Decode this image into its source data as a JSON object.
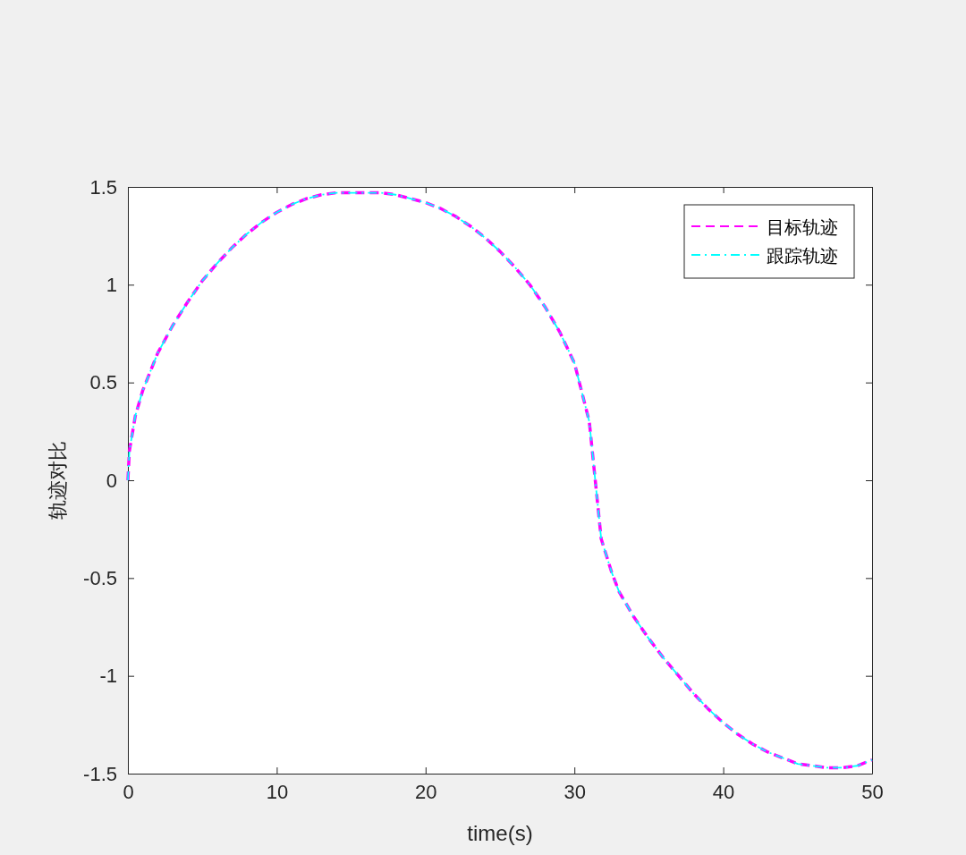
{
  "chart_data": {
    "type": "line",
    "xlabel": "time(s)",
    "ylabel": "轨迹对比",
    "x": [
      0,
      0.1,
      0.5,
      1,
      2,
      3,
      4,
      5,
      6,
      7,
      8,
      9,
      10,
      11,
      12,
      13,
      14,
      15.7,
      17,
      18,
      19,
      20,
      21,
      22,
      23,
      24,
      25,
      26,
      27,
      28,
      29,
      30,
      31,
      31.4,
      31.8,
      32.5,
      33,
      34,
      35,
      36,
      37,
      38,
      39,
      40,
      41,
      42,
      43,
      44,
      45,
      46,
      47,
      48,
      49,
      50
    ],
    "series": [
      {
        "name": "目标轨迹",
        "color": "#ff00ff",
        "line_style": "dashed",
        "values": [
          0,
          0.15,
          0.33,
          0.46,
          0.65,
          0.79,
          0.91,
          1.02,
          1.11,
          1.19,
          1.26,
          1.32,
          1.37,
          1.41,
          1.44,
          1.46,
          1.47,
          1.47,
          1.47,
          1.46,
          1.44,
          1.42,
          1.39,
          1.35,
          1.3,
          1.24,
          1.17,
          1.09,
          1.0,
          0.89,
          0.76,
          0.6,
          0.3,
          0,
          -0.3,
          -0.47,
          -0.57,
          -0.7,
          -0.81,
          -0.91,
          -1.0,
          -1.09,
          -1.17,
          -1.24,
          -1.3,
          -1.35,
          -1.39,
          -1.42,
          -1.45,
          -1.46,
          -1.47,
          -1.47,
          -1.46,
          -1.43
        ]
      },
      {
        "name": "跟踪轨迹",
        "color": "#00ffff",
        "line_style": "dashed",
        "values": [
          0,
          0.15,
          0.33,
          0.46,
          0.65,
          0.79,
          0.91,
          1.02,
          1.11,
          1.19,
          1.26,
          1.32,
          1.37,
          1.41,
          1.44,
          1.46,
          1.47,
          1.47,
          1.47,
          1.46,
          1.44,
          1.42,
          1.39,
          1.35,
          1.3,
          1.24,
          1.17,
          1.09,
          1.0,
          0.89,
          0.76,
          0.6,
          0.3,
          0,
          -0.3,
          -0.47,
          -0.57,
          -0.7,
          -0.81,
          -0.91,
          -1.0,
          -1.09,
          -1.17,
          -1.24,
          -1.3,
          -1.35,
          -1.39,
          -1.42,
          -1.45,
          -1.46,
          -1.47,
          -1.47,
          -1.46,
          -1.43
        ]
      }
    ],
    "xlim": [
      0,
      50
    ],
    "xticks": [
      0,
      10,
      20,
      30,
      40,
      50
    ],
    "ylim": [
      -1.5,
      1.5
    ],
    "yticks": [
      -1.5,
      -1,
      -0.5,
      0,
      0.5,
      1,
      1.5
    ],
    "grid": false,
    "legend": "top right",
    "marker": "none"
  }
}
